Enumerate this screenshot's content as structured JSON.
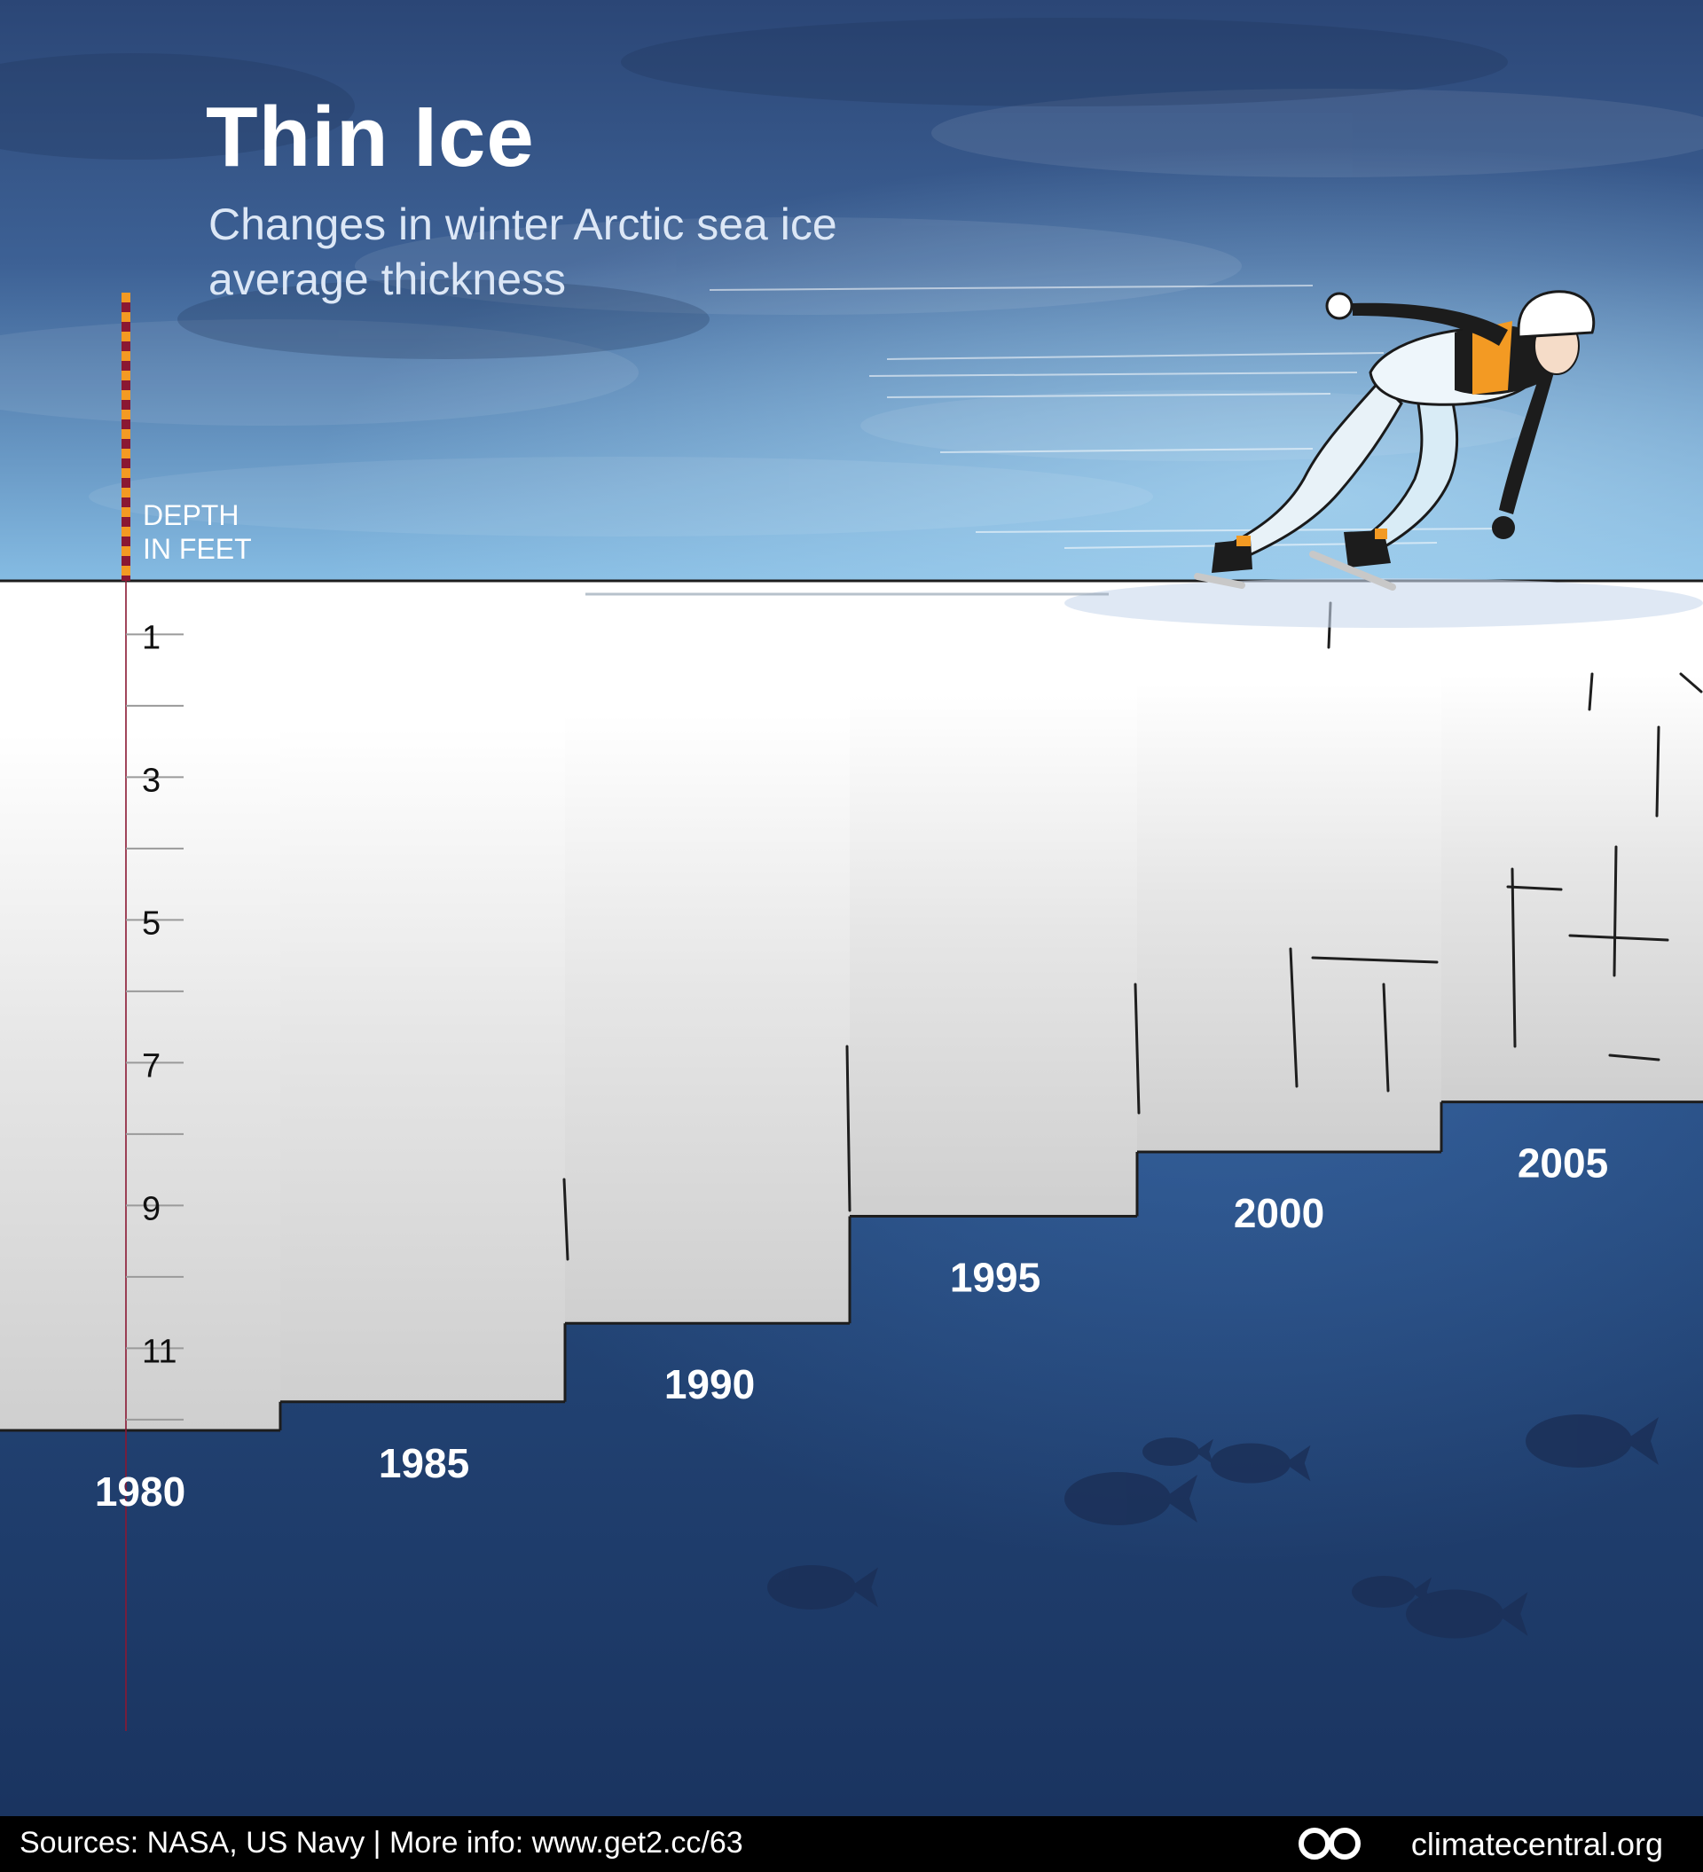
{
  "title": "Thin Ice",
  "subtitle": "Changes in winter Arctic sea ice average thickness",
  "depth_label_line1": "DEPTH",
  "depth_label_line2": "IN FEET",
  "footer": {
    "sources": "Sources: NASA, US Navy | More info: www.get2.cc/63",
    "logo_text": "climatecentral.org",
    "logo_icon": "climate-central-logo-icon"
  },
  "colors": {
    "ice": "#ffffff",
    "ice_shadow": "#d2d2d2",
    "water_top": "#2a4d86",
    "water_bottom": "#1a3464",
    "sky_top": "#2c4a7c",
    "sky_bottom": "#7fb4de",
    "ruler_stripe_a": "#f39a23",
    "ruler_stripe_b": "#8a1833",
    "skater_accent": "#f39a23"
  },
  "chart_data": {
    "type": "bar",
    "categories": [
      "1980",
      "1985",
      "1990",
      "1995",
      "2000",
      "2005"
    ],
    "values": [
      11.9,
      11.5,
      10.4,
      8.9,
      8.0,
      7.3
    ],
    "ylabel": "DEPTH IN FEET",
    "yticks": [
      1,
      3,
      5,
      7,
      9,
      11
    ],
    "ylim": [
      0,
      11.9
    ],
    "y_inverted": true,
    "grid": false
  }
}
